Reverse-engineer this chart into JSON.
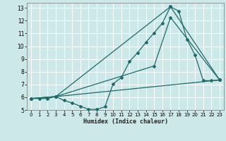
{
  "title": "",
  "xlabel": "Humidex (Indice chaleur)",
  "bg_color": "#cce8e8",
  "grid_color": "#aad4d4",
  "line_color": "#1a6b6b",
  "xlim": [
    -0.5,
    23.5
  ],
  "ylim": [
    5,
    13.4
  ],
  "xticks": [
    0,
    1,
    2,
    3,
    4,
    5,
    6,
    7,
    8,
    9,
    10,
    11,
    12,
    13,
    14,
    15,
    16,
    17,
    18,
    19,
    20,
    21,
    22,
    23
  ],
  "yticks": [
    5,
    6,
    7,
    8,
    9,
    10,
    11,
    12,
    13
  ],
  "line1_x": [
    0,
    1,
    2,
    3,
    4,
    5,
    6,
    7,
    8,
    9,
    10,
    11,
    12,
    13,
    14,
    15,
    16,
    17,
    18,
    19,
    20,
    21,
    22,
    23
  ],
  "line1_y": [
    5.9,
    5.9,
    5.9,
    6.05,
    5.75,
    5.55,
    5.3,
    5.05,
    5.05,
    5.25,
    7.05,
    7.55,
    8.8,
    9.5,
    10.3,
    11.05,
    11.8,
    13.1,
    12.75,
    10.55,
    9.3,
    7.3,
    7.3,
    7.35
  ],
  "line2_x": [
    0,
    3,
    15,
    17,
    23
  ],
  "line2_y": [
    5.9,
    6.05,
    8.45,
    12.25,
    7.35
  ],
  "line3_x": [
    0,
    3,
    17,
    23
  ],
  "line3_y": [
    5.9,
    6.05,
    13.1,
    7.35
  ],
  "line4_x": [
    0,
    3,
    23
  ],
  "line4_y": [
    5.9,
    6.05,
    7.35
  ]
}
